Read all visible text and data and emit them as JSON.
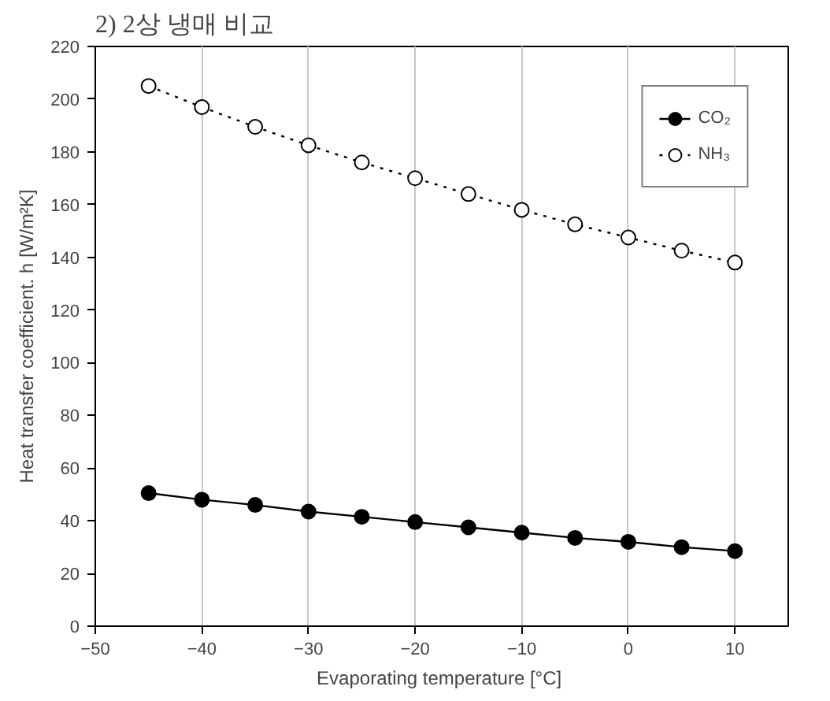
{
  "chart_data": {
    "type": "line",
    "title": "2) 2상 냉매 비교",
    "xlabel": "Evaporating temperature  [°C]",
    "ylabel": "Heat transfer coefficient. h [W/m²K]",
    "x": [
      -45,
      -40,
      -35,
      -30,
      -25,
      -20,
      -15,
      -10,
      -5,
      0,
      5,
      10
    ],
    "series": [
      {
        "name": "CO₂",
        "color": "#000000",
        "marker": "circle",
        "line_style": "solid",
        "values": [
          50.5,
          48,
          46,
          43.5,
          41.5,
          39.5,
          37.5,
          35.5,
          33.5,
          32,
          30,
          28.5
        ]
      },
      {
        "name": "NH₃",
        "color": "#000000",
        "marker": "circle",
        "line_style": "dotted",
        "values": [
          205,
          197,
          189.5,
          182.5,
          176,
          170,
          164,
          158,
          152.5,
          147.5,
          142.5,
          138
        ]
      }
    ],
    "xlim": [
      -50,
      15
    ],
    "xticks": [
      -50,
      -40,
      -30,
      -20,
      -10,
      0,
      10
    ],
    "ylim": [
      0,
      220
    ],
    "yticks": [
      0,
      20,
      40,
      60,
      80,
      100,
      120,
      140,
      160,
      180,
      200,
      220
    ],
    "grid": "x",
    "legend": "top right"
  }
}
